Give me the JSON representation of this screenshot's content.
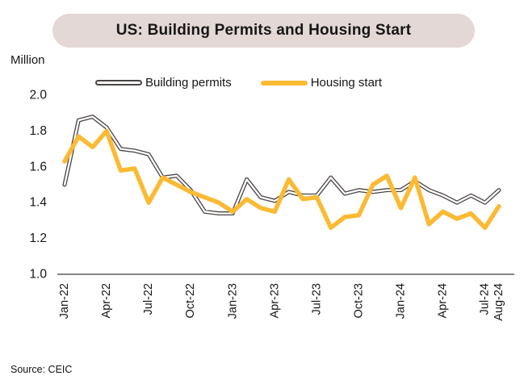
{
  "header": {
    "title": "US: Building Permits and Housing Start",
    "badge_color": "#e3d8d6"
  },
  "y_axis_unit_label": "Million",
  "legend": {
    "items": [
      {
        "label": "Building permits",
        "style": "outline",
        "color": "#4a4444"
      },
      {
        "label": "Housing start",
        "style": "solid",
        "color": "#fbba33"
      }
    ]
  },
  "footer": {
    "source": "Source: CEIC"
  },
  "colors": {
    "permits_line": "#4a4444",
    "starts_line": "#fbba33",
    "axis": "#3d3d3d",
    "text": "#161616",
    "title_badge_bg": "#e3d8d6"
  },
  "chart_data": {
    "type": "line",
    "title": "US: Building Permits and Housing Start",
    "ylabel": "Million",
    "xlabel": "",
    "grid": false,
    "legend_position": "top",
    "ylim": [
      1.0,
      2.0
    ],
    "y_ticks": [
      1.0,
      1.2,
      1.4,
      1.6,
      1.8,
      2.0
    ],
    "y_tick_labels": [
      "1.0",
      "1.2",
      "1.4",
      "1.6",
      "1.8",
      "2.0"
    ],
    "x": [
      "Jan-22",
      "Feb-22",
      "Mar-22",
      "Apr-22",
      "May-22",
      "Jun-22",
      "Jul-22",
      "Aug-22",
      "Sep-22",
      "Oct-22",
      "Nov-22",
      "Dec-22",
      "Jan-23",
      "Feb-23",
      "Mar-23",
      "Apr-23",
      "May-23",
      "Jun-23",
      "Jul-23",
      "Aug-23",
      "Sep-23",
      "Oct-23",
      "Nov-23",
      "Dec-23",
      "Jan-24",
      "Feb-24",
      "Mar-24",
      "Apr-24",
      "May-24",
      "Jun-24",
      "Jul-24",
      "Aug-24"
    ],
    "x_tick_labels": [
      "Jan-22",
      "Apr-22",
      "Jul-22",
      "Oct-22",
      "Jan-23",
      "Apr-23",
      "Jul-23",
      "Oct-23",
      "Jan-24",
      "Apr-24",
      "Jul-24",
      "Aug-24"
    ],
    "series": [
      {
        "name": "Building permits",
        "color": "#4a4444",
        "line_style": "double-outline",
        "values": [
          1.5,
          1.86,
          1.88,
          1.82,
          1.7,
          1.69,
          1.67,
          1.54,
          1.55,
          1.47,
          1.35,
          1.34,
          1.34,
          1.53,
          1.43,
          1.41,
          1.46,
          1.44,
          1.44,
          1.54,
          1.45,
          1.47,
          1.46,
          1.47,
          1.47,
          1.52,
          1.47,
          1.44,
          1.4,
          1.44,
          1.4,
          1.47
        ]
      },
      {
        "name": "Housing start",
        "color": "#fbba33",
        "line_style": "solid-thick",
        "values": [
          1.63,
          1.77,
          1.71,
          1.8,
          1.58,
          1.59,
          1.4,
          1.54,
          1.5,
          1.46,
          1.43,
          1.4,
          1.35,
          1.42,
          1.37,
          1.35,
          1.53,
          1.42,
          1.43,
          1.26,
          1.32,
          1.33,
          1.5,
          1.55,
          1.37,
          1.54,
          1.28,
          1.35,
          1.31,
          1.34,
          1.26,
          1.38
        ]
      }
    ]
  }
}
